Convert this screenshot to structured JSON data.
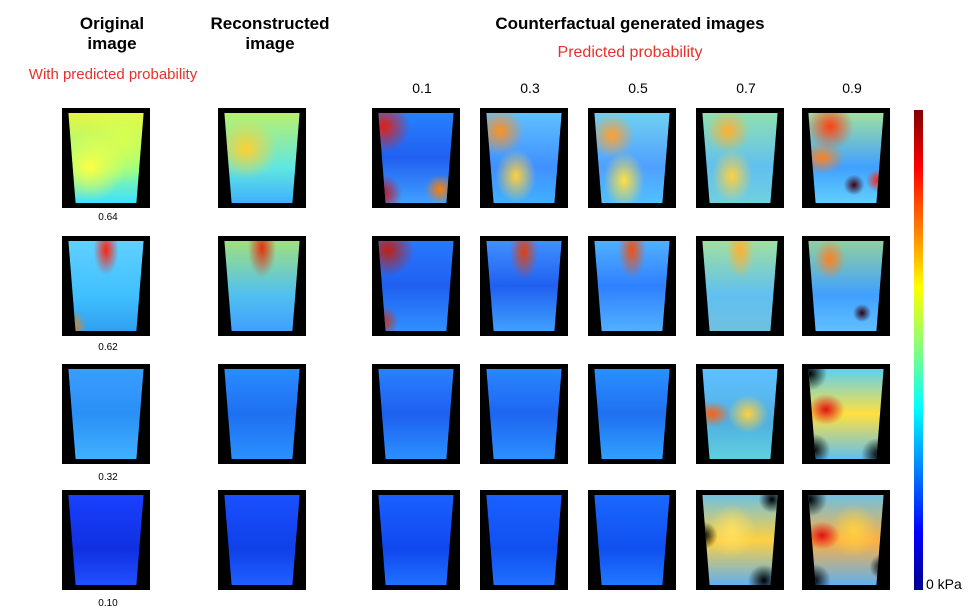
{
  "headers": {
    "original": [
      "Original",
      "image"
    ],
    "original_sub": "With predicted probability",
    "reconstructed": [
      "Reconstructed",
      "image"
    ],
    "counterfactual": "Counterfactual generated images",
    "counterfactual_sub": "Predicted probability"
  },
  "probabilities": [
    "0.1",
    "0.3",
    "0.5",
    "0.7",
    "0.9"
  ],
  "rows": [
    {
      "original_probability": "0.64"
    },
    {
      "original_probability": "0.62"
    },
    {
      "original_probability": "0.32"
    },
    {
      "original_probability": "0.10"
    }
  ],
  "colorbar": {
    "unit_label": "0 kPa",
    "colormap": "jet"
  }
}
